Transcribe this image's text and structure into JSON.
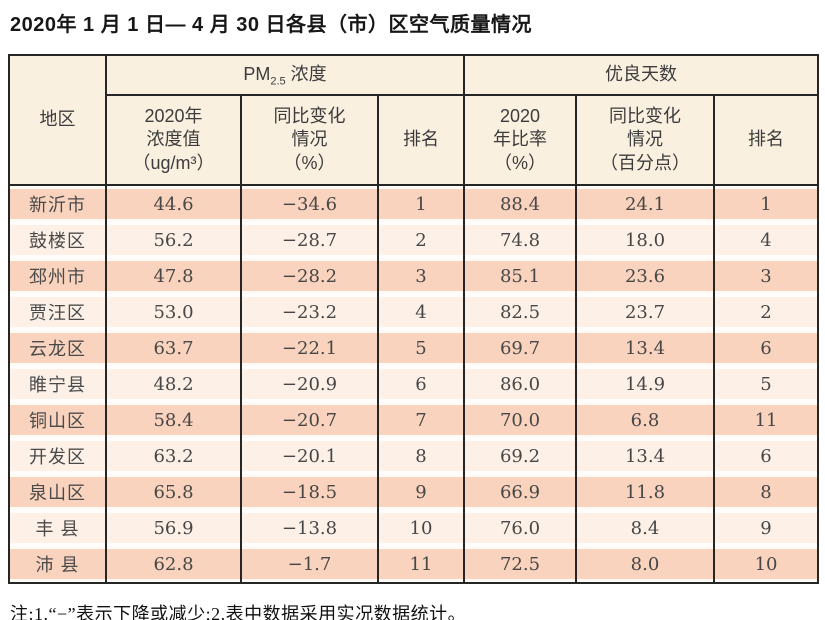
{
  "title": "2020年 1 月 1 日— 4 月 30 日各县（市）区空气质量情况",
  "table": {
    "header": {
      "region": "地区",
      "pm_base": "PM",
      "pm_sub": "2.5",
      "pm_rest": " 浓度",
      "good_group": "优良天数",
      "pm_cols": [
        "2020年\n浓度值\n（ug/m³）",
        "同比变化\n情况\n（%）",
        "排名"
      ],
      "good_cols": [
        "2020\n年比率\n（%）",
        "同比变化\n情况\n（百分点）",
        "排名"
      ]
    },
    "rows": [
      {
        "region": "新沂市",
        "pm_value": "44.6",
        "pm_change": "−34.6",
        "pm_rank": "1",
        "good_ratio": "88.4",
        "good_change": "24.1",
        "good_rank": "1"
      },
      {
        "region": "鼓楼区",
        "pm_value": "56.2",
        "pm_change": "−28.7",
        "pm_rank": "2",
        "good_ratio": "74.8",
        "good_change": "18.0",
        "good_rank": "4"
      },
      {
        "region": "邳州市",
        "pm_value": "47.8",
        "pm_change": "−28.2",
        "pm_rank": "3",
        "good_ratio": "85.1",
        "good_change": "23.6",
        "good_rank": "3"
      },
      {
        "region": "贾汪区",
        "pm_value": "53.0",
        "pm_change": "−23.2",
        "pm_rank": "4",
        "good_ratio": "82.5",
        "good_change": "23.7",
        "good_rank": "2"
      },
      {
        "region": "云龙区",
        "pm_value": "63.7",
        "pm_change": "−22.1",
        "pm_rank": "5",
        "good_ratio": "69.7",
        "good_change": "13.4",
        "good_rank": "6"
      },
      {
        "region": "睢宁县",
        "pm_value": "48.2",
        "pm_change": "−20.9",
        "pm_rank": "6",
        "good_ratio": "86.0",
        "good_change": "14.9",
        "good_rank": "5"
      },
      {
        "region": "铜山区",
        "pm_value": "58.4",
        "pm_change": "−20.7",
        "pm_rank": "7",
        "good_ratio": "70.0",
        "good_change": "6.8",
        "good_rank": "11"
      },
      {
        "region": "开发区",
        "pm_value": "63.2",
        "pm_change": "−20.1",
        "pm_rank": "8",
        "good_ratio": "69.2",
        "good_change": "13.4",
        "good_rank": "6"
      },
      {
        "region": "泉山区",
        "pm_value": "65.8",
        "pm_change": "−18.5",
        "pm_rank": "9",
        "good_ratio": "66.9",
        "good_change": "11.8",
        "good_rank": "8"
      },
      {
        "region": "丰 县",
        "pm_value": "56.9",
        "pm_change": "−13.8",
        "pm_rank": "10",
        "good_ratio": "76.0",
        "good_change": "8.4",
        "good_rank": "9"
      },
      {
        "region": "沛 县",
        "pm_value": "62.8",
        "pm_change": "−1.7",
        "pm_rank": "11",
        "good_ratio": "72.5",
        "good_change": "8.0",
        "good_rank": "10"
      }
    ]
  },
  "note": "注:1.“−”表示下降或减少;2.表中数据采用实况数据统计。",
  "colors": {
    "row_salmon": "#f9d3bd",
    "row_light": "#fcf0e7",
    "header_bg": "#faf0e0",
    "border_dark": "#262626"
  }
}
